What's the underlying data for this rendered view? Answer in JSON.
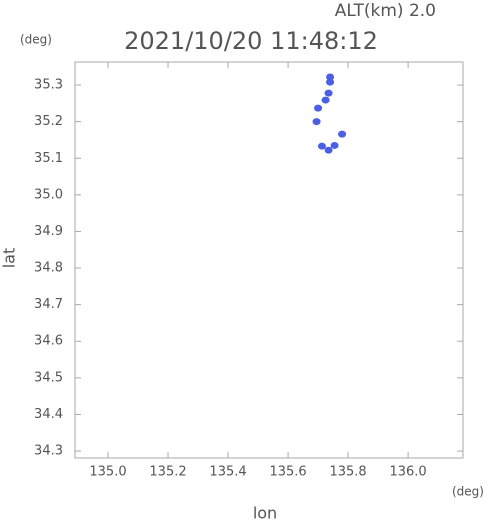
{
  "chart_data": {
    "type": "scatter",
    "altitude_label": "ALT(km)  2.0",
    "title": "2021/10/20 11:48:12",
    "y_unit": "(deg)",
    "x_unit": "(deg)",
    "x_label": "lon",
    "y_label": "lat",
    "color": "#4a5ee6",
    "x": [
      135.74,
      135.74,
      135.735,
      135.725,
      135.7,
      135.695,
      135.78,
      135.713,
      135.735,
      135.755
    ],
    "values": [
      35.322,
      35.308,
      35.278,
      35.259,
      35.237,
      35.2,
      35.166,
      35.133,
      35.122,
      35.135
    ],
    "xlim": [
      134.89,
      136.183
    ],
    "ylim": [
      34.281,
      35.363
    ],
    "xticks": [
      {
        "value": 135.0,
        "label": "135.0"
      },
      135.2,
      135.4,
      135.6,
      135.8,
      {
        "value": 136.0,
        "label": "136.0"
      }
    ],
    "yticks": [
      34.3,
      34.4,
      34.5,
      34.6,
      34.7,
      34.8,
      34.9,
      {
        "value": 35.0,
        "label": "35.0"
      },
      35.1,
      35.2,
      35.3
    ]
  }
}
